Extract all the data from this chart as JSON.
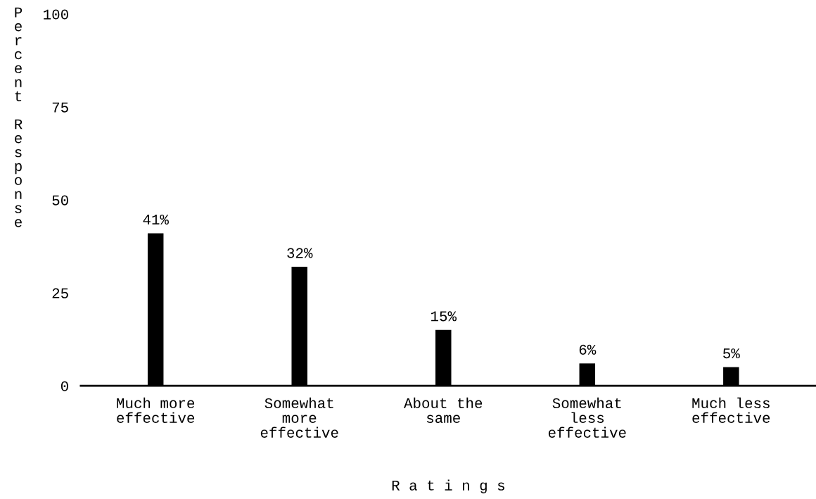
{
  "chart_data": {
    "type": "bar",
    "categories": [
      "Much more\neffective",
      "Somewhat\nmore\neffective",
      "About the\nsame",
      "Somewhat\nless\neffective",
      "Much less\neffective"
    ],
    "values": [
      41,
      32,
      15,
      6,
      5
    ],
    "value_labels": [
      "41%",
      "32%",
      "15%",
      "6%",
      "5%"
    ],
    "color": "#000000",
    "ylim": [
      0,
      100
    ],
    "yticks": [
      0,
      25,
      50,
      75,
      100
    ],
    "ylabel": "Percent Response",
    "xlabel": "R a t i n g s",
    "grid": false,
    "legend": false
  }
}
